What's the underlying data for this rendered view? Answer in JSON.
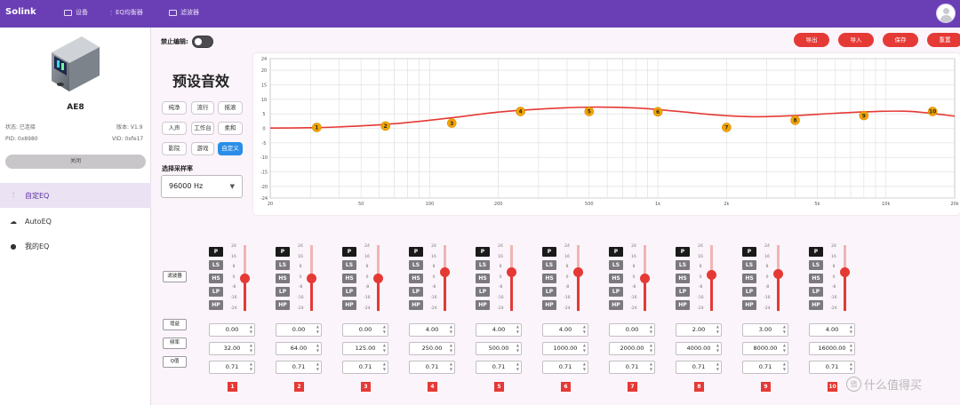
{
  "app": {
    "brand": "Solink",
    "nav": [
      {
        "label": "设备",
        "icon": "laptop-icon"
      },
      {
        "label": "EQ均衡器",
        "icon": "equalizer-icon"
      },
      {
        "label": "滤波器",
        "icon": "chart-icon"
      }
    ]
  },
  "device": {
    "name": "AE8",
    "status_label": "状态: 已连接",
    "version_label": "版本: V1.9",
    "pid_label": "PID: 0x8980",
    "vid_label": "VID: 0xfe17",
    "close_label": "关闭"
  },
  "sidebar": {
    "items": [
      {
        "label": "自定EQ",
        "icon": "tune-icon",
        "active": true
      },
      {
        "label": "AutoEQ",
        "icon": "cloud-icon",
        "active": false
      },
      {
        "label": "我的EQ",
        "icon": "person-icon",
        "active": false
      }
    ]
  },
  "lock": {
    "label": "禁止编辑:"
  },
  "presets": {
    "title": "预设音效",
    "items": [
      "纯净",
      "流行",
      "摇滚",
      "人声",
      "工作台",
      "柔和",
      "影院",
      "游戏",
      "自定义"
    ],
    "selected": "自定义"
  },
  "sample_rate": {
    "label": "选择采样率",
    "value": "96000 Hz"
  },
  "actions": {
    "export": "导出",
    "import": "导入",
    "save": "保存",
    "reset": "重置"
  },
  "chart_data": {
    "type": "line",
    "x_scale": "log",
    "x_ticks": [
      "20",
      "50",
      "100",
      "200",
      "500",
      "1k",
      "2k",
      "5k",
      "10k",
      "20k"
    ],
    "x_tick_values": [
      20,
      50,
      100,
      200,
      500,
      1000,
      2000,
      5000,
      10000,
      20000
    ],
    "y_ticks": [
      24,
      20,
      15,
      10,
      5,
      0,
      -5,
      -10,
      -15,
      -20,
      -24
    ],
    "ylim": [
      -24,
      24
    ],
    "xlim": [
      20,
      20000
    ],
    "grid": true,
    "curve_color": "#e53935",
    "point_color": "#f5a400",
    "curve": [
      [
        20,
        0.1
      ],
      [
        30,
        0.2
      ],
      [
        40,
        0.5
      ],
      [
        60,
        1.2
      ],
      [
        90,
        2.4
      ],
      [
        130,
        3.8
      ],
      [
        200,
        5.6
      ],
      [
        300,
        6.6
      ],
      [
        500,
        7.3
      ],
      [
        800,
        7.0
      ],
      [
        1200,
        5.9
      ],
      [
        1800,
        4.6
      ],
      [
        2600,
        4.0
      ],
      [
        4000,
        4.4
      ],
      [
        6000,
        5.2
      ],
      [
        9000,
        5.8
      ],
      [
        13000,
        5.8
      ],
      [
        20000,
        4.2
      ]
    ],
    "points": [
      {
        "label": "1",
        "freq": 32,
        "gain": 0.3
      },
      {
        "label": "2",
        "freq": 64,
        "gain": 0.8
      },
      {
        "label": "3",
        "freq": 125,
        "gain": 1.8
      },
      {
        "label": "4",
        "freq": 250,
        "gain": 5.8
      },
      {
        "label": "5",
        "freq": 500,
        "gain": 5.8
      },
      {
        "label": "6",
        "freq": 1000,
        "gain": 5.7
      },
      {
        "label": "7",
        "freq": 2000,
        "gain": 0.3
      },
      {
        "label": "8",
        "freq": 4000,
        "gain": 2.8
      },
      {
        "label": "9",
        "freq": 8000,
        "gain": 4.4
      },
      {
        "label": "10",
        "freq": 16000,
        "gain": 5.8
      }
    ]
  },
  "controls": {
    "side_labels": {
      "filter": "滤波器",
      "gain": "增益",
      "freq": "频率",
      "q": "Q值"
    },
    "filter_types": [
      "P",
      "LS",
      "HS",
      "LP",
      "HP"
    ],
    "slider_ticks": [
      "24",
      "16",
      "8",
      "0",
      "-8",
      "-16",
      "-24"
    ],
    "gain_range": [
      -24,
      24
    ],
    "bands": [
      {
        "no": "1",
        "gain": "0.00",
        "freq": "32.00",
        "q": "0.71",
        "gain_value": 0
      },
      {
        "no": "2",
        "gain": "0.00",
        "freq": "64.00",
        "q": "0.71",
        "gain_value": 0
      },
      {
        "no": "3",
        "gain": "0.00",
        "freq": "125.00",
        "q": "0.71",
        "gain_value": 0
      },
      {
        "no": "4",
        "gain": "4.00",
        "freq": "250.00",
        "q": "0.71",
        "gain_value": 4
      },
      {
        "no": "5",
        "gain": "4.00",
        "freq": "500.00",
        "q": "0.71",
        "gain_value": 4
      },
      {
        "no": "6",
        "gain": "4.00",
        "freq": "1000.00",
        "q": "0.71",
        "gain_value": 4
      },
      {
        "no": "7",
        "gain": "0.00",
        "freq": "2000.00",
        "q": "0.71",
        "gain_value": 0
      },
      {
        "no": "8",
        "gain": "2.00",
        "freq": "4000.00",
        "q": "0.71",
        "gain_value": 2
      },
      {
        "no": "9",
        "gain": "3.00",
        "freq": "8000.00",
        "q": "0.71",
        "gain_value": 3
      },
      {
        "no": "10",
        "gain": "4.00",
        "freq": "16000.00",
        "q": "0.71",
        "gain_value": 4
      }
    ]
  },
  "watermark": {
    "glyph": "值",
    "text": "什么值得买"
  }
}
